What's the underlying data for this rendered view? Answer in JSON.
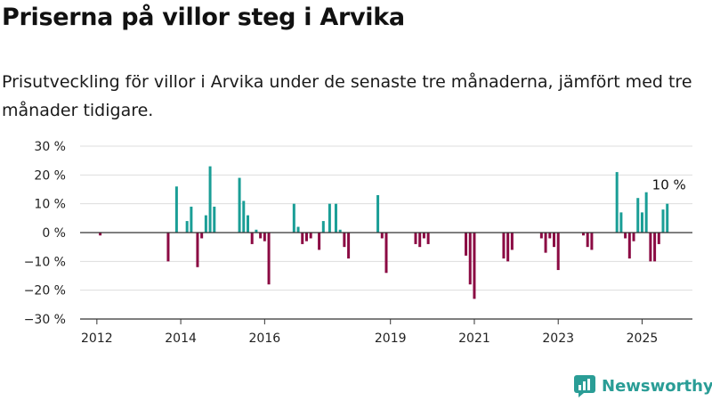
{
  "header": {
    "title": "Priserna på villor steg i Arvika",
    "subtitle": "Prisutveckling för villor i Arvika under de senaste tre månaderna, jämfört med tre månader tidigare."
  },
  "brand": {
    "name": "Newsworthy",
    "icon": "newsworthy-logo-icon",
    "color": "#2a9d96"
  },
  "chart_data": {
    "type": "bar",
    "title": "",
    "xlabel": "",
    "ylabel": "",
    "ylim": [
      -30,
      30
    ],
    "y_ticks": [
      -30,
      -20,
      -10,
      0,
      10,
      20,
      30
    ],
    "y_tick_labels": [
      "−30 %",
      "−20 %",
      "−10 %",
      "0 %",
      "10 %",
      "20 %",
      "30 %"
    ],
    "x_range": [
      2011.6,
      2026.2
    ],
    "x_ticks": [
      2012,
      2014,
      2016,
      2019,
      2021,
      2023,
      2025
    ],
    "x_tick_labels": [
      "2012",
      "2014",
      "2016",
      "2019",
      "2021",
      "2023",
      "2025"
    ],
    "grid": true,
    "colors": {
      "positive": "#1a9e96",
      "negative": "#8b0a43"
    },
    "annotation": {
      "text": "10 %",
      "x": 2025.6,
      "y": 10
    },
    "series": [
      {
        "x": [
          2012.08,
          2013.7,
          2013.9,
          2014.15,
          2014.25,
          2014.4,
          2014.5,
          2014.6,
          2014.7,
          2014.8,
          2015.4,
          2015.5,
          2015.6,
          2015.7,
          2015.8,
          2015.9,
          2016.0,
          2016.1,
          2016.7,
          2016.8,
          2016.9,
          2017.0,
          2017.1,
          2017.3,
          2017.4,
          2017.55,
          2017.7,
          2017.8,
          2017.9,
          2018.0,
          2018.7,
          2018.8,
          2018.9,
          2019.6,
          2019.7,
          2019.8,
          2019.9,
          2020.8,
          2020.9,
          2021.0,
          2021.7,
          2021.8,
          2021.9,
          2022.6,
          2022.7,
          2022.8,
          2022.9,
          2023.0,
          2023.6,
          2023.7,
          2023.8,
          2024.4,
          2024.5,
          2024.6,
          2024.7,
          2024.8,
          2024.9,
          2025.0,
          2025.1,
          2025.2,
          2025.3,
          2025.4,
          2025.5,
          2025.6
        ],
        "values": [
          -1,
          -10,
          16,
          4,
          9,
          -12,
          -2,
          6,
          23,
          9,
          19,
          11,
          6,
          -4,
          1,
          -2,
          -3,
          -18,
          10,
          2,
          -4,
          -3,
          -2,
          -6,
          4,
          10,
          10,
          1,
          -5,
          -9,
          13,
          -2,
          -14,
          -4,
          -5,
          -2,
          -4,
          -8,
          -18,
          -23,
          -9,
          -10,
          -6,
          -2,
          -7,
          -2,
          -5,
          -13,
          -1,
          -5,
          -6,
          21,
          7,
          -2,
          -9,
          -3,
          12,
          7,
          14,
          -10,
          -10,
          -4,
          8,
          10
        ]
      }
    ]
  }
}
